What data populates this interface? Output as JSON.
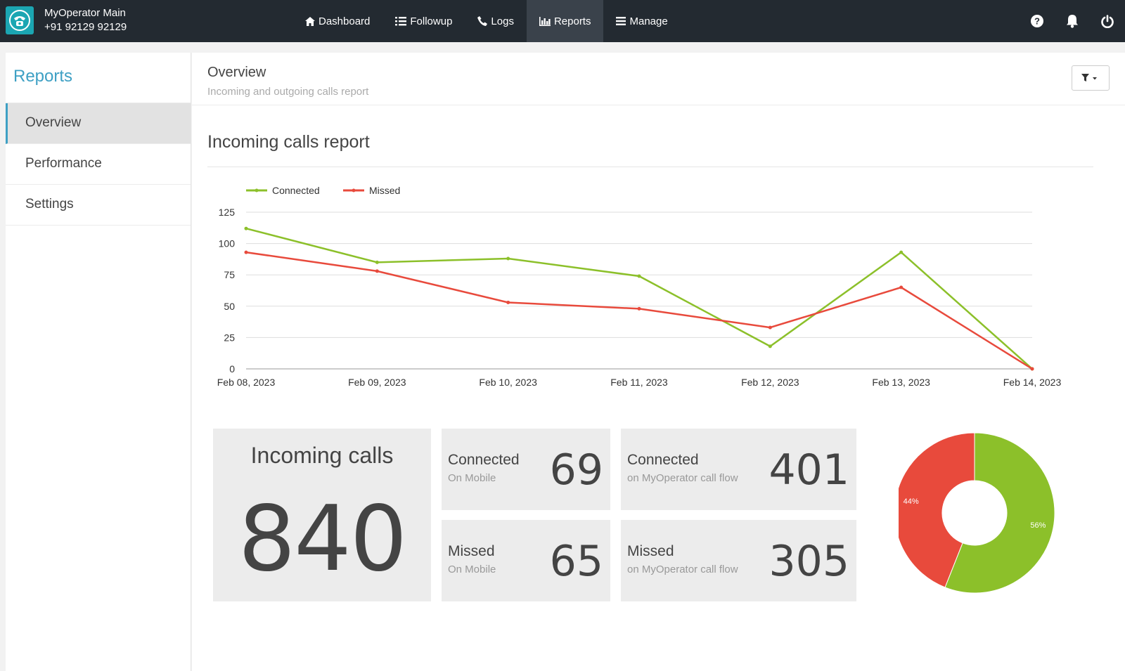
{
  "topbar": {
    "account_name": "MyOperator Main",
    "account_phone": "+91 92129 92129",
    "nav": [
      {
        "label": "Dashboard",
        "icon": "home-icon"
      },
      {
        "label": "Followup",
        "icon": "list-icon"
      },
      {
        "label": "Logs",
        "icon": "phone-icon"
      },
      {
        "label": "Reports",
        "icon": "bar-chart-icon",
        "active": true
      },
      {
        "label": "Manage",
        "icon": "menu-icon"
      }
    ],
    "icons": [
      "help-icon",
      "bell-icon",
      "power-icon"
    ]
  },
  "sidebar": {
    "title": "Reports",
    "items": [
      {
        "label": "Overview",
        "active": true
      },
      {
        "label": "Performance"
      },
      {
        "label": "Settings"
      }
    ]
  },
  "header": {
    "title": "Overview",
    "subtitle": "Incoming and outgoing calls report"
  },
  "section": {
    "title": "Incoming calls report"
  },
  "chart_data": [
    {
      "type": "line",
      "categories": [
        "Feb 08, 2023",
        "Feb 09, 2023",
        "Feb 10, 2023",
        "Feb 11, 2023",
        "Feb 12, 2023",
        "Feb 13, 2023",
        "Feb 14, 2023"
      ],
      "series": [
        {
          "name": "Connected",
          "color": "#8cc02a",
          "values": [
            112,
            85,
            88,
            74,
            18,
            93,
            0
          ]
        },
        {
          "name": "Missed",
          "color": "#e84a3c",
          "values": [
            93,
            78,
            53,
            48,
            33,
            65,
            0
          ]
        }
      ],
      "yticks": [
        0,
        25,
        50,
        75,
        100,
        125
      ],
      "ylim": [
        0,
        125
      ],
      "grid": true,
      "legend": "top-left"
    },
    {
      "type": "pie",
      "donut": true,
      "slices": [
        {
          "label": "56%",
          "value": 56,
          "color": "#8cc02a"
        },
        {
          "label": "44%",
          "value": 44,
          "color": "#e84a3c"
        }
      ]
    }
  ],
  "stats": {
    "incoming_title": "Incoming calls",
    "incoming_total": "840",
    "connected_mobile": {
      "label": "Connected",
      "sub": "On Mobile",
      "value": "69"
    },
    "connected_flow": {
      "label": "Connected",
      "sub": "on MyOperator call flow",
      "value": "401"
    },
    "missed_mobile": {
      "label": "Missed",
      "sub": "On Mobile",
      "value": "65"
    },
    "missed_flow": {
      "label": "Missed",
      "sub": "on MyOperator call flow",
      "value": "305"
    }
  }
}
